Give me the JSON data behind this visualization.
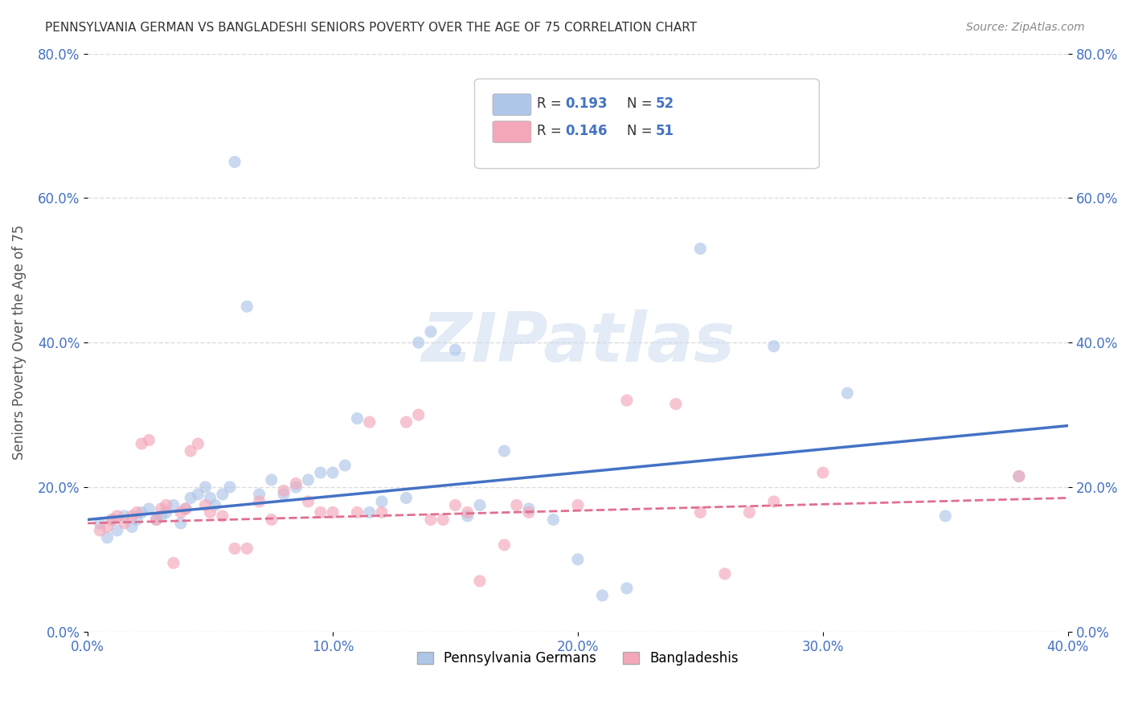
{
  "title": "PENNSYLVANIA GERMAN VS BANGLADESHI SENIORS POVERTY OVER THE AGE OF 75 CORRELATION CHART",
  "source": "Source: ZipAtlas.com",
  "ylabel": "Seniors Poverty Over the Age of 75",
  "xlabel_ticks": [
    "0.0%",
    "10.0%",
    "20.0%",
    "30.0%",
    "40.0%"
  ],
  "xlabel_vals": [
    0.0,
    0.1,
    0.2,
    0.3,
    0.4
  ],
  "ylabel_ticks": [
    "0.0%",
    "20.0%",
    "40.0%",
    "60.0%",
    "80.0%"
  ],
  "ylabel_vals": [
    0.0,
    0.2,
    0.4,
    0.6,
    0.8
  ],
  "xlim": [
    0.0,
    0.4
  ],
  "ylim": [
    0.0,
    0.8
  ],
  "blue_scatter_x": [
    0.005,
    0.008,
    0.01,
    0.012,
    0.015,
    0.018,
    0.02,
    0.022,
    0.025,
    0.028,
    0.03,
    0.032,
    0.035,
    0.038,
    0.04,
    0.042,
    0.045,
    0.048,
    0.05,
    0.052,
    0.055,
    0.058,
    0.06,
    0.065,
    0.07,
    0.075,
    0.08,
    0.085,
    0.09,
    0.095,
    0.1,
    0.105,
    0.11,
    0.115,
    0.12,
    0.13,
    0.135,
    0.14,
    0.15,
    0.155,
    0.16,
    0.17,
    0.18,
    0.19,
    0.2,
    0.21,
    0.22,
    0.25,
    0.28,
    0.31,
    0.35,
    0.38
  ],
  "blue_scatter_y": [
    0.15,
    0.13,
    0.155,
    0.14,
    0.16,
    0.145,
    0.155,
    0.165,
    0.17,
    0.155,
    0.16,
    0.165,
    0.175,
    0.15,
    0.17,
    0.185,
    0.19,
    0.2,
    0.185,
    0.175,
    0.19,
    0.2,
    0.65,
    0.45,
    0.19,
    0.21,
    0.19,
    0.2,
    0.21,
    0.22,
    0.22,
    0.23,
    0.295,
    0.165,
    0.18,
    0.185,
    0.4,
    0.415,
    0.39,
    0.16,
    0.175,
    0.25,
    0.17,
    0.155,
    0.1,
    0.05,
    0.06,
    0.53,
    0.395,
    0.33,
    0.16,
    0.215
  ],
  "pink_scatter_x": [
    0.005,
    0.008,
    0.01,
    0.012,
    0.015,
    0.018,
    0.02,
    0.022,
    0.025,
    0.028,
    0.03,
    0.032,
    0.035,
    0.038,
    0.04,
    0.042,
    0.045,
    0.048,
    0.05,
    0.055,
    0.06,
    0.065,
    0.07,
    0.075,
    0.08,
    0.085,
    0.09,
    0.095,
    0.1,
    0.11,
    0.115,
    0.12,
    0.13,
    0.135,
    0.14,
    0.145,
    0.15,
    0.155,
    0.16,
    0.17,
    0.175,
    0.18,
    0.2,
    0.22,
    0.24,
    0.25,
    0.26,
    0.27,
    0.28,
    0.3,
    0.38
  ],
  "pink_scatter_y": [
    0.14,
    0.145,
    0.155,
    0.16,
    0.15,
    0.16,
    0.165,
    0.26,
    0.265,
    0.155,
    0.17,
    0.175,
    0.095,
    0.165,
    0.17,
    0.25,
    0.26,
    0.175,
    0.165,
    0.16,
    0.115,
    0.115,
    0.18,
    0.155,
    0.195,
    0.205,
    0.18,
    0.165,
    0.165,
    0.165,
    0.29,
    0.165,
    0.29,
    0.3,
    0.155,
    0.155,
    0.175,
    0.165,
    0.07,
    0.12,
    0.175,
    0.165,
    0.175,
    0.32,
    0.315,
    0.165,
    0.08,
    0.165,
    0.18,
    0.22,
    0.215
  ],
  "blue_line_x": [
    0.0,
    0.4
  ],
  "blue_line_y": [
    0.155,
    0.285
  ],
  "pink_line_x": [
    0.0,
    0.4
  ],
  "pink_line_y": [
    0.15,
    0.185
  ],
  "scatter_size": 120,
  "scatter_alpha": 0.65,
  "blue_color": "#aec6e8",
  "pink_color": "#f4a7b9",
  "blue_line_color": "#4472c4",
  "pink_line_color": "#e07090",
  "watermark": "ZIPatlas",
  "background_color": "#ffffff",
  "grid_color": "#dddddd",
  "R_blue": "0.193",
  "N_blue": "52",
  "R_pink": "0.146",
  "N_pink": "51",
  "label_blue": "Pennsylvania Germans",
  "label_pink": "Bangladeshis"
}
